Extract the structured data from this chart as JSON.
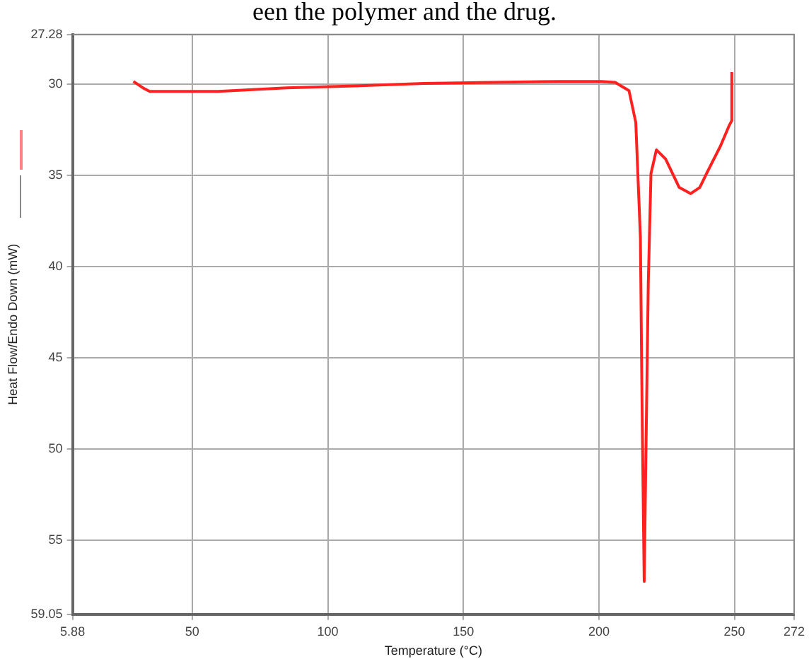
{
  "chart_data": {
    "type": "line",
    "xlabel": "Temperature (°C)",
    "ylabel": "Heat Flow/Endo Down (mW)",
    "annotations": [
      "een the polymer and the drug."
    ],
    "x": [
      28.3,
      31.8,
      34.3,
      59.6,
      84.8,
      110,
      135.4,
      160.6,
      185.9,
      201,
      206,
      211.1,
      213.6,
      215.3,
      215.8,
      216.2,
      216.7,
      217.5,
      218.2,
      219.2,
      221.2,
      224.6,
      229.6,
      233.8,
      237.2,
      239.7,
      244.8,
      248.1,
      249,
      249
    ],
    "series": [
      {
        "color": "#ff2020",
        "values": [
          29.85,
          30.2,
          30.4,
          30.4,
          30.2,
          30.1,
          29.96,
          29.9,
          29.85,
          29.85,
          29.9,
          30.36,
          32.1,
          38.4,
          46,
          51.1,
          57.25,
          48.5,
          40.96,
          34.9,
          33.6,
          34.1,
          35.66,
          36.0,
          35.66,
          34.9,
          33.4,
          32.25,
          32.0,
          29.34
        ]
      }
    ],
    "xlim": [
      5.88,
      272
    ],
    "xticks": [
      5.88,
      50,
      100,
      150,
      200,
      250,
      272
    ],
    "ylim": [
      59.05,
      27.28
    ],
    "yticks": [
      27.28,
      30,
      35,
      40,
      45,
      50,
      55,
      59.05
    ],
    "grid": true,
    "legend": false,
    "marker": "none",
    "line_style": "solid"
  }
}
